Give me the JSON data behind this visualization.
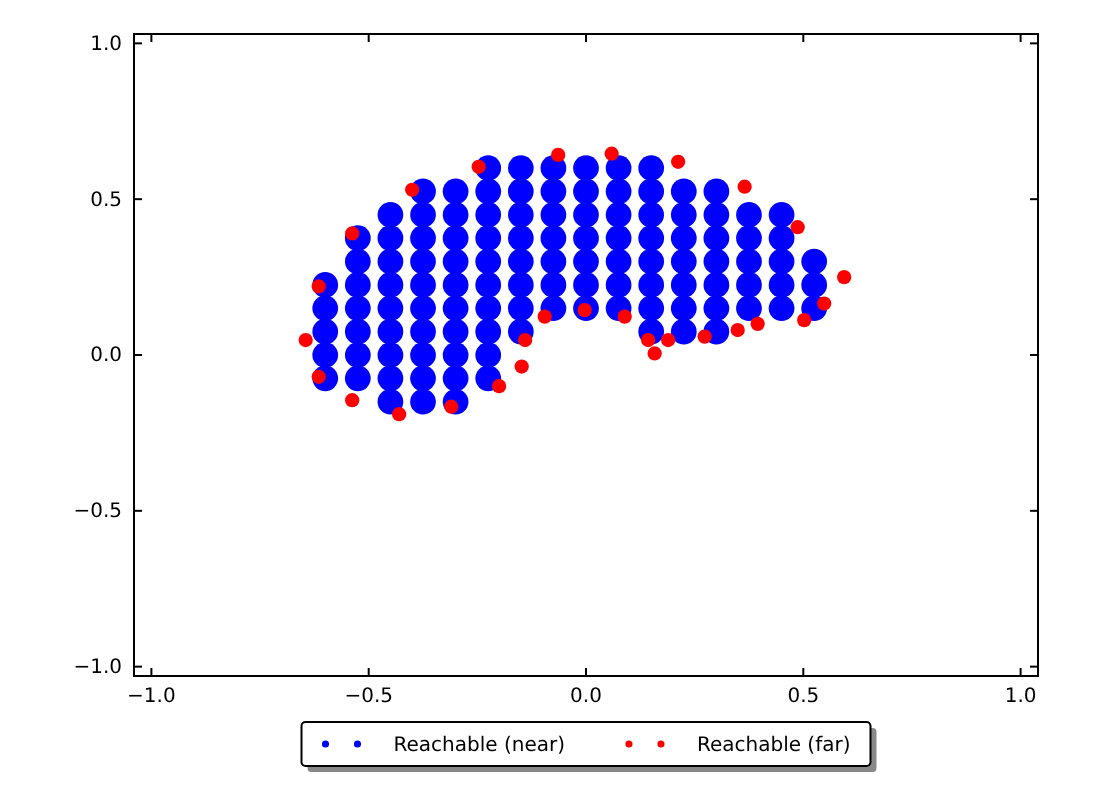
{
  "chart_data": {
    "type": "scatter",
    "xlim": [
      -1.04,
      1.04
    ],
    "ylim": [
      -1.03,
      1.03
    ],
    "xticks": [
      {
        "value": -1,
        "label": "−1.0"
      },
      {
        "value": -0.5,
        "label": "−0.5"
      },
      {
        "value": 0,
        "label": "0.0"
      },
      {
        "value": 0.5,
        "label": "0.5"
      },
      {
        "value": 1,
        "label": "1.0"
      }
    ],
    "yticks": [
      {
        "value": -1,
        "label": "−1.0"
      },
      {
        "value": -0.5,
        "label": "−0.5"
      },
      {
        "value": 0,
        "label": "0.0"
      },
      {
        "value": 0.5,
        "label": "0.5"
      },
      {
        "value": 1,
        "label": "1.0"
      }
    ],
    "marker": "circle",
    "legend": "bottom",
    "series": [
      {
        "name": "Reachable (near)",
        "color": "#0000ff",
        "x": [
          -0.225,
          -0.15,
          -0.075,
          0,
          0.075,
          0.15,
          -0.375,
          -0.3,
          -0.225,
          -0.15,
          -0.075,
          0,
          0.075,
          0.15,
          0.225,
          0.3,
          -0.45,
          -0.375,
          -0.3,
          -0.225,
          -0.15,
          -0.075,
          0,
          0.075,
          0.15,
          0.225,
          0.3,
          0.375,
          0.45,
          -0.525,
          -0.45,
          -0.375,
          -0.3,
          -0.225,
          -0.15,
          -0.075,
          0,
          0.075,
          0.15,
          0.225,
          0.3,
          0.375,
          0.45,
          -0.525,
          -0.45,
          -0.375,
          -0.3,
          -0.225,
          -0.15,
          -0.075,
          0,
          0.075,
          0.15,
          0.225,
          0.3,
          0.375,
          0.45,
          0.525,
          -0.6,
          -0.525,
          -0.45,
          -0.375,
          -0.3,
          -0.225,
          -0.15,
          -0.075,
          0,
          0.075,
          0.15,
          0.225,
          0.3,
          0.375,
          0.45,
          0.525,
          -0.6,
          -0.525,
          -0.45,
          -0.375,
          -0.3,
          -0.225,
          -0.15,
          -0.075,
          0,
          0.075,
          0.15,
          0.225,
          0.3,
          0.375,
          0.45,
          0.525,
          -0.6,
          -0.525,
          -0.45,
          -0.375,
          -0.3,
          -0.225,
          -0.15,
          0.15,
          0.225,
          0.3,
          -0.6,
          -0.525,
          -0.45,
          -0.375,
          -0.3,
          -0.225,
          -0.6,
          -0.525,
          -0.45,
          -0.375,
          -0.3,
          -0.225,
          -0.45,
          -0.375,
          -0.3
        ],
        "values": [
          0.6,
          0.6,
          0.6,
          0.6,
          0.6,
          0.6,
          0.525,
          0.525,
          0.525,
          0.525,
          0.525,
          0.525,
          0.525,
          0.525,
          0.525,
          0.525,
          0.45,
          0.45,
          0.45,
          0.45,
          0.45,
          0.45,
          0.45,
          0.45,
          0.45,
          0.45,
          0.45,
          0.45,
          0.45,
          0.375,
          0.375,
          0.375,
          0.375,
          0.375,
          0.375,
          0.375,
          0.375,
          0.375,
          0.375,
          0.375,
          0.375,
          0.375,
          0.375,
          0.3,
          0.3,
          0.3,
          0.3,
          0.3,
          0.3,
          0.3,
          0.3,
          0.3,
          0.3,
          0.3,
          0.3,
          0.3,
          0.3,
          0.3,
          0.225,
          0.225,
          0.225,
          0.225,
          0.225,
          0.225,
          0.225,
          0.225,
          0.225,
          0.225,
          0.225,
          0.225,
          0.225,
          0.225,
          0.225,
          0.225,
          0.15,
          0.15,
          0.15,
          0.15,
          0.15,
          0.15,
          0.15,
          0.15,
          0.15,
          0.15,
          0.15,
          0.15,
          0.15,
          0.15,
          0.15,
          0.15,
          0.075,
          0.075,
          0.075,
          0.075,
          0.075,
          0.075,
          0.075,
          0.075,
          0.075,
          0.075,
          0,
          0,
          0,
          0,
          0,
          0,
          -0.075,
          -0.075,
          -0.075,
          -0.075,
          -0.075,
          -0.075,
          -0.15,
          -0.15,
          -0.15
        ]
      },
      {
        "name": "Reachable (far)",
        "color": "#ff0000",
        "x": [
          -0.645,
          -0.615,
          -0.538,
          -0.4,
          -0.247,
          -0.064,
          0.059,
          0.212,
          0.365,
          0.487,
          0.594,
          0.548,
          0.502,
          0.395,
          0.349,
          0.273,
          0.189,
          0.158,
          0.143,
          0.089,
          -0.003,
          -0.095,
          -0.14,
          -0.148,
          -0.2,
          -0.31,
          -0.43,
          -0.538,
          -0.615
        ],
        "values": [
          0.048,
          0.22,
          0.39,
          0.53,
          0.604,
          0.642,
          0.646,
          0.62,
          0.54,
          0.41,
          0.25,
          0.165,
          0.112,
          0.1,
          0.08,
          0.059,
          0.048,
          0.005,
          0.048,
          0.123,
          0.144,
          0.123,
          0.048,
          -0.037,
          -0.1,
          -0.166,
          -0.19,
          -0.145,
          -0.07
        ]
      }
    ]
  }
}
